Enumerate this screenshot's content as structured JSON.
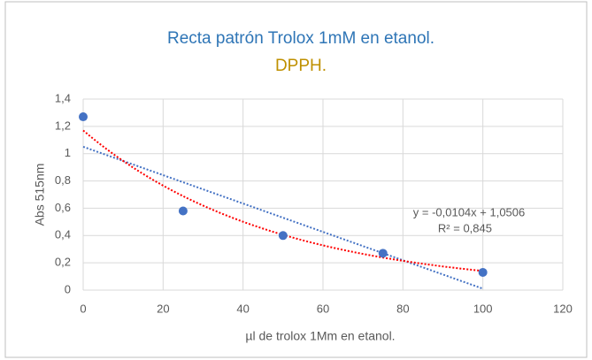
{
  "chart_data": {
    "type": "scatter",
    "title": "Recta patrón Trolox 1mM en etanol.",
    "subtitle": "DPPH.",
    "xlabel": "µl de trolox 1Mm en etanol.",
    "ylabel": "Abs 515nm",
    "x": [
      0,
      25,
      50,
      75,
      100
    ],
    "values": [
      1.27,
      0.58,
      0.4,
      0.27,
      0.13
    ],
    "color": "#4472c4",
    "xlim": [
      0,
      120
    ],
    "xticks": [
      0,
      20,
      40,
      60,
      80,
      100,
      120
    ],
    "ylim": [
      0,
      1.4
    ],
    "yticks": [
      0,
      {
        "value": 0.2,
        "label": "0,2"
      },
      {
        "value": 0.4,
        "label": "0,4"
      },
      {
        "value": 0.6,
        "label": "0,6"
      },
      {
        "value": 0.8,
        "label": "0,8"
      },
      1,
      {
        "value": 1.2,
        "label": "1,2"
      },
      {
        "value": 1.4,
        "label": "1,4"
      }
    ],
    "grid": true,
    "trendlines": [
      {
        "kind": "linear",
        "slope": -0.0104,
        "intercept": 1.0506,
        "color": "#4472c4",
        "equation": "y = -0,0104x + 1,0506",
        "r2": 0.845,
        "r2_label": "R² = 0,845"
      },
      {
        "kind": "exponential",
        "a": 1.17,
        "b": -0.0212,
        "color": "#ff0000"
      }
    ]
  }
}
